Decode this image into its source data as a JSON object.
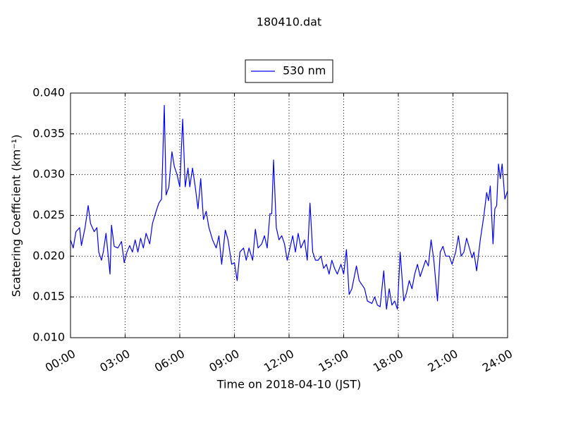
{
  "chart_data": {
    "type": "line",
    "title": "180410.dat",
    "xlabel": "Time on 2018-04-10 (JST)",
    "ylabel": "Scattering Coefficient (km⁻¹)",
    "legend": "upper center",
    "grid": true,
    "xlim": [
      0,
      24
    ],
    "ylim": [
      0.01,
      0.04
    ],
    "xticks": [
      {
        "value": 0,
        "label": "00:00"
      },
      {
        "value": 3,
        "label": "03:00"
      },
      {
        "value": 6,
        "label": "06:00"
      },
      {
        "value": 9,
        "label": "09:00"
      },
      {
        "value": 12,
        "label": "12:00"
      },
      {
        "value": 15,
        "label": "15:00"
      },
      {
        "value": 18,
        "label": "18:00"
      },
      {
        "value": 21,
        "label": "21:00"
      },
      {
        "value": 24,
        "label": "24:00"
      }
    ],
    "yticks": [
      {
        "value": 0.01,
        "label": "0.010"
      },
      {
        "value": 0.015,
        "label": "0.015"
      },
      {
        "value": 0.02,
        "label": "0.020"
      },
      {
        "value": 0.025,
        "label": "0.025"
      },
      {
        "value": 0.03,
        "label": "0.030"
      },
      {
        "value": 0.035,
        "label": "0.035"
      },
      {
        "value": 0.04,
        "label": "0.040"
      }
    ],
    "x": [
      0,
      0.15,
      0.3,
      0.5,
      0.6,
      0.8,
      0.97,
      1.1,
      1.3,
      1.45,
      1.55,
      1.7,
      1.8,
      1.95,
      2.05,
      2.17,
      2.25,
      2.4,
      2.6,
      2.8,
      2.95,
      3.1,
      3.25,
      3.4,
      3.55,
      3.7,
      3.85,
      4.0,
      4.15,
      4.35,
      4.5,
      4.7,
      4.85,
      5.0,
      5.15,
      5.25,
      5.4,
      5.57,
      5.7,
      5.85,
      6.0,
      6.16,
      6.3,
      6.45,
      6.55,
      6.7,
      6.85,
      7.0,
      7.15,
      7.3,
      7.45,
      7.6,
      7.8,
      8.0,
      8.15,
      8.3,
      8.5,
      8.65,
      8.85,
      9.0,
      9.15,
      9.3,
      9.5,
      9.65,
      9.8,
      10.0,
      10.15,
      10.3,
      10.5,
      10.65,
      10.8,
      10.95,
      11.05,
      11.15,
      11.3,
      11.45,
      11.6,
      11.75,
      11.9,
      12.05,
      12.2,
      12.35,
      12.5,
      12.65,
      12.85,
      13.0,
      13.15,
      13.3,
      13.45,
      13.6,
      13.75,
      13.9,
      14.05,
      14.2,
      14.35,
      14.5,
      14.65,
      14.85,
      15.0,
      15.15,
      15.3,
      15.45,
      15.7,
      15.85,
      16.0,
      16.15,
      16.3,
      16.55,
      16.7,
      16.85,
      17.0,
      17.2,
      17.35,
      17.5,
      17.65,
      17.8,
      17.95,
      18.1,
      18.3,
      18.45,
      18.6,
      18.75,
      18.9,
      19.05,
      19.2,
      19.35,
      19.5,
      19.65,
      19.8,
      19.95,
      20.15,
      20.3,
      20.45,
      20.6,
      20.8,
      20.95,
      21.15,
      21.3,
      21.45,
      21.6,
      21.75,
      21.9,
      22.05,
      22.15,
      22.3,
      22.5,
      22.7,
      22.85,
      22.95,
      23.05,
      23.2,
      23.3,
      23.4,
      23.5,
      23.6,
      23.7,
      23.85,
      24.0
    ],
    "series": [
      {
        "name": "530 nm",
        "color": "#0000ff",
        "values": [
          0.022,
          0.021,
          0.023,
          0.0235,
          0.0213,
          0.0235,
          0.0262,
          0.024,
          0.023,
          0.0235,
          0.0205,
          0.0195,
          0.0205,
          0.0228,
          0.0205,
          0.0178,
          0.0238,
          0.0212,
          0.021,
          0.0218,
          0.0192,
          0.0205,
          0.0213,
          0.0205,
          0.022,
          0.0205,
          0.0222,
          0.021,
          0.0228,
          0.0215,
          0.024,
          0.0255,
          0.0265,
          0.027,
          0.0385,
          0.0275,
          0.0285,
          0.0328,
          0.031,
          0.03,
          0.0285,
          0.0368,
          0.0285,
          0.0308,
          0.0285,
          0.0308,
          0.0285,
          0.0258,
          0.0295,
          0.0245,
          0.0255,
          0.0235,
          0.022,
          0.021,
          0.0225,
          0.019,
          0.0232,
          0.022,
          0.019,
          0.0192,
          0.017,
          0.0205,
          0.021,
          0.0195,
          0.021,
          0.0195,
          0.0233,
          0.021,
          0.0215,
          0.0225,
          0.021,
          0.0252,
          0.0252,
          0.0318,
          0.0235,
          0.022,
          0.0225,
          0.0215,
          0.0195,
          0.021,
          0.0225,
          0.0205,
          0.0228,
          0.021,
          0.022,
          0.0195,
          0.0265,
          0.0205,
          0.0195,
          0.0195,
          0.02,
          0.0185,
          0.019,
          0.0178,
          0.0195,
          0.0185,
          0.0178,
          0.019,
          0.0178,
          0.0208,
          0.0153,
          0.016,
          0.0188,
          0.017,
          0.0165,
          0.016,
          0.0145,
          0.0142,
          0.015,
          0.014,
          0.0138,
          0.0182,
          0.0135,
          0.016,
          0.014,
          0.0145,
          0.0135,
          0.0205,
          0.0145,
          0.0155,
          0.017,
          0.016,
          0.0178,
          0.019,
          0.0175,
          0.0185,
          0.0195,
          0.0188,
          0.022,
          0.0195,
          0.0145,
          0.0205,
          0.0212,
          0.02,
          0.02,
          0.019,
          0.0205,
          0.0225,
          0.02,
          0.0205,
          0.0222,
          0.021,
          0.0198,
          0.0205,
          0.0182,
          0.022,
          0.025,
          0.0278,
          0.0268,
          0.0286,
          0.0215,
          0.0258,
          0.0262,
          0.0313,
          0.0295,
          0.0313,
          0.027,
          0.028
        ]
      }
    ]
  }
}
